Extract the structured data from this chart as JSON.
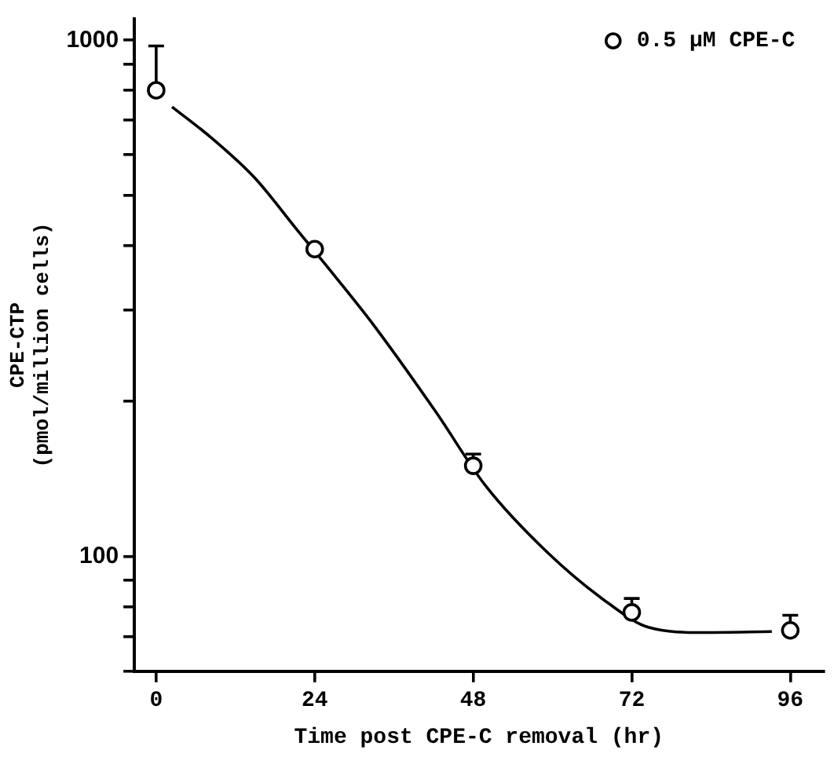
{
  "chart_data": {
    "type": "scatter",
    "xlabel": "Time post CPE-C removal (hr)",
    "ylabel": "CPE-CTP\n(pmol/million cells)",
    "xlim": [
      -3.3,
      101
    ],
    "xticks": [
      0,
      24,
      48,
      72,
      96
    ],
    "ylim": [
      60,
      1100
    ],
    "log": "y",
    "yticks": [
      {
        "value": 60,
        "label": null
      },
      {
        "value": 70,
        "label": null
      },
      {
        "value": 80,
        "label": null
      },
      {
        "value": 90,
        "label": null
      },
      100,
      {
        "value": 200,
        "label": null
      },
      {
        "value": 300,
        "label": null
      },
      {
        "value": 400,
        "label": null
      },
      {
        "value": 500,
        "label": null
      },
      {
        "value": 600,
        "label": null
      },
      {
        "value": 700,
        "label": null
      },
      {
        "value": 800,
        "label": null
      },
      {
        "value": 900,
        "label": null
      },
      1000
    ],
    "grid": false,
    "legend": "top right",
    "marker": "circle",
    "series": [
      {
        "name": "0.5 μM CPE-C",
        "color": "#000000",
        "x": [
          0,
          24,
          48,
          72,
          96
        ],
        "values": [
          800,
          394,
          150,
          78,
          72
        ],
        "errors": [
          [
            800,
            975
          ],
          null,
          [
            150,
            158
          ],
          [
            78,
            83
          ],
          [
            72,
            77
          ]
        ]
      },
      {
        "type": "line",
        "color": "#000000",
        "marker": "none",
        "line_style": "solid",
        "x": [
          2.4,
          8.3,
          15,
          21.1,
          27,
          33,
          42.3,
          49.9,
          59.2,
          68.6,
          74.5,
          83,
          93.2
        ],
        "values": [
          743,
          648,
          540,
          433,
          350,
          280,
          191,
          137,
          102,
          81,
          73,
          71.3,
          71.6
        ]
      }
    ]
  }
}
